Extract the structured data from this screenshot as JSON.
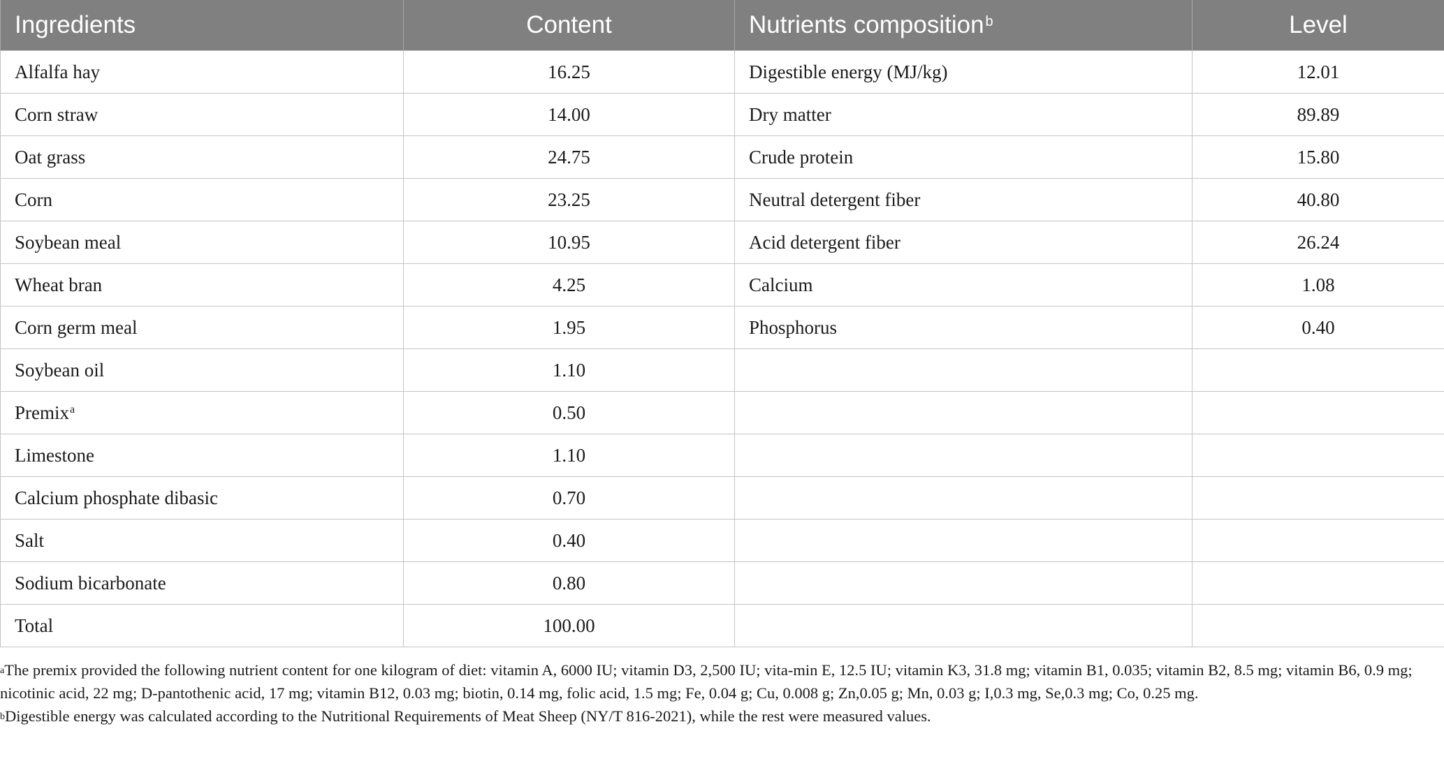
{
  "table": {
    "headers": {
      "ingredients": "Ingredients",
      "content": "Content",
      "nutrients": "Nutrients composition",
      "nutrients_marker": "b",
      "level": "Level"
    },
    "rows": [
      {
        "ingredient": "Alfalfa hay",
        "marker": "",
        "content": "16.25",
        "nutrient": "Digestible energy (MJ/kg)",
        "level": "12.01"
      },
      {
        "ingredient": "Corn straw",
        "marker": "",
        "content": "14.00",
        "nutrient": "Dry matter",
        "level": "89.89"
      },
      {
        "ingredient": "Oat grass",
        "marker": "",
        "content": "24.75",
        "nutrient": "Crude protein",
        "level": "15.80"
      },
      {
        "ingredient": "Corn",
        "marker": "",
        "content": "23.25",
        "nutrient": "Neutral detergent fiber",
        "level": "40.80"
      },
      {
        "ingredient": "Soybean meal",
        "marker": "",
        "content": "10.95",
        "nutrient": "Acid detergent fiber",
        "level": "26.24"
      },
      {
        "ingredient": "Wheat bran",
        "marker": "",
        "content": "4.25",
        "nutrient": "Calcium",
        "level": "1.08"
      },
      {
        "ingredient": "Corn germ meal",
        "marker": "",
        "content": "1.95",
        "nutrient": "Phosphorus",
        "level": "0.40"
      },
      {
        "ingredient": "Soybean oil",
        "marker": "",
        "content": "1.10",
        "nutrient": "",
        "level": ""
      },
      {
        "ingredient": "Premix",
        "marker": "a",
        "content": "0.50",
        "nutrient": "",
        "level": ""
      },
      {
        "ingredient": "Limestone",
        "marker": "",
        "content": "1.10",
        "nutrient": "",
        "level": ""
      },
      {
        "ingredient": "Calcium phosphate dibasic",
        "marker": "",
        "content": "0.70",
        "nutrient": "",
        "level": ""
      },
      {
        "ingredient": "Salt",
        "marker": "",
        "content": "0.40",
        "nutrient": "",
        "level": ""
      },
      {
        "ingredient": "Sodium bicarbonate",
        "marker": "",
        "content": "0.80",
        "nutrient": "",
        "level": ""
      },
      {
        "ingredient": "Total",
        "marker": "",
        "content": "100.00",
        "nutrient": "",
        "level": ""
      }
    ]
  },
  "footnotes": [
    {
      "marker": "a",
      "text": "The premix provided the following nutrient content for one kilogram of diet: vitamin A, 6000 IU; vitamin D3, 2,500 IU; vita-min E, 12.5 IU; vitamin K3, 31.8 mg; vitamin B1, 0.035; vitamin B2, 8.5 mg; vitamin B6, 0.9 mg; nicotinic acid, 22 mg; D-pantothenic acid, 17 mg; vitamin B12, 0.03 mg; biotin, 0.14 mg, folic acid, 1.5 mg; Fe, 0.04 g; Cu, 0.008 g; Zn,0.05 g; Mn, 0.03 g; I,0.3 mg, Se,0.3 mg; Co, 0.25 mg."
    },
    {
      "marker": "b",
      "text": "Digestible energy was calculated according to the Nutritional Requirements of Meat Sheep (NY/T 816-2021), while the rest were measured values."
    }
  ],
  "colors": {
    "header_bg": "#808080",
    "header_text": "#ffffff",
    "grid": "#c4c4c4"
  }
}
